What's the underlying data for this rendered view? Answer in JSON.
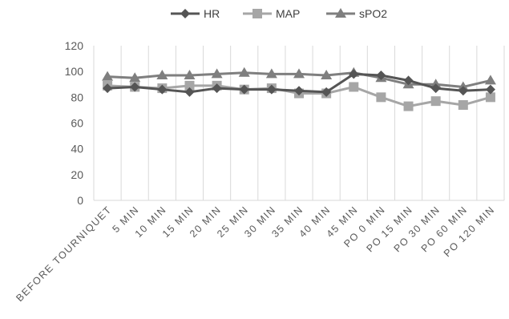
{
  "chart_data": {
    "type": "line",
    "categories": [
      "BEFORE TOURNIQUET",
      "5 MIN",
      "10 MIN",
      "15 MIN",
      "20 MIN",
      "25 MIN",
      "30 MIN",
      "35 MIN",
      "40 MIN",
      "45 MIN",
      "PO 0 MIN",
      "PO 15 MIN",
      "PO 30 MIN",
      "PO 60 MIN",
      "PO 120 MIN"
    ],
    "series": [
      {
        "name": "HR",
        "marker": "diamond",
        "color": "#555555",
        "values": [
          87,
          88,
          86,
          84,
          87,
          86,
          86,
          85,
          84,
          98,
          97,
          93,
          87,
          85,
          86
        ]
      },
      {
        "name": "MAP",
        "marker": "square",
        "color": "#a6a6a6",
        "values": [
          89,
          88,
          87,
          89,
          89,
          86,
          87,
          83,
          83,
          88,
          80,
          73,
          77,
          74,
          80
        ]
      },
      {
        "name": "sPO2",
        "marker": "triangle",
        "color": "#7f7f7f",
        "values": [
          96,
          95,
          97,
          97,
          98,
          99,
          98,
          98,
          97,
          99,
          95,
          90,
          90,
          88,
          93
        ]
      }
    ],
    "yticks": [
      "0",
      "20",
      "40",
      "60",
      "80",
      "100",
      "120"
    ],
    "ylim": [
      0,
      120
    ],
    "grid": "vertical",
    "legend": "top-center"
  }
}
